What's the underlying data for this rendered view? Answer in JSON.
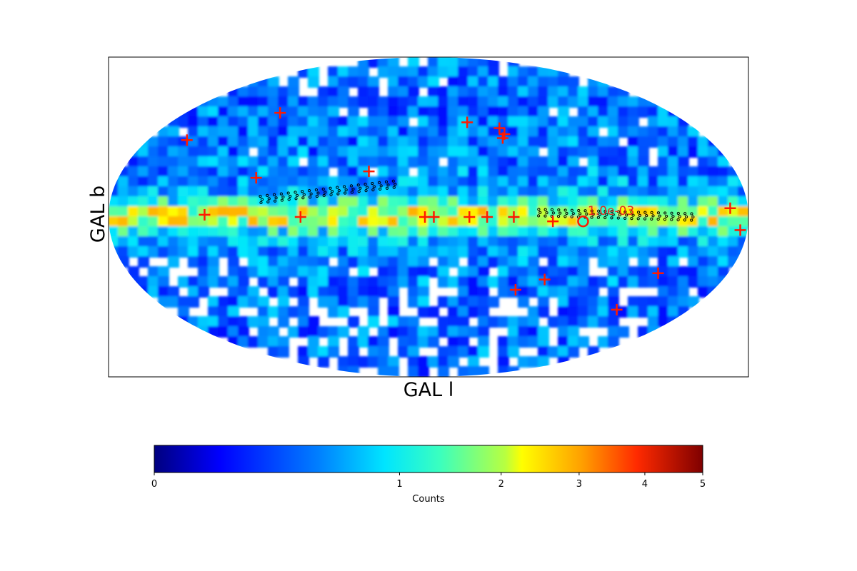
{
  "chart_data": {
    "type": "heatmap",
    "projection": "mollweide",
    "title": "",
    "xlabel": "GAL l",
    "ylabel": "GAL b",
    "colorbar": {
      "label": "Counts",
      "colormap": "jet",
      "scale": "sqrt",
      "range": [
        0,
        5
      ],
      "ticks": [
        "0",
        "1",
        "2",
        "3",
        "4",
        "5"
      ],
      "tick_values": [
        0,
        1,
        2,
        3,
        4,
        5
      ]
    },
    "annotation": {
      "text": "1.0e-03",
      "color": "#e8281e"
    },
    "marker_color": "#ff1a00",
    "circle_color": "#ff1a00",
    "source_markers": [
      {
        "lon": 155,
        "lat": 36
      },
      {
        "lon": 110,
        "lat": 50
      },
      {
        "lon": 100,
        "lat": 18
      },
      {
        "lon": 35,
        "lat": 21
      },
      {
        "lon": -27,
        "lat": 45
      },
      {
        "lon": -48,
        "lat": 42
      },
      {
        "lon": -50,
        "lat": 39
      },
      {
        "lon": -48,
        "lat": 37
      },
      {
        "lon": 126,
        "lat": 1
      },
      {
        "lon": 72,
        "lat": 0
      },
      {
        "lon": 2,
        "lat": 0
      },
      {
        "lon": -3,
        "lat": 0
      },
      {
        "lon": -23,
        "lat": 0
      },
      {
        "lon": -33,
        "lat": 0
      },
      {
        "lon": -48,
        "lat": 0
      },
      {
        "lon": -70,
        "lat": -2
      },
      {
        "lon": -170,
        "lat": 4
      },
      {
        "lon": -176,
        "lat": -6
      },
      {
        "lon": -71,
        "lat": -29
      },
      {
        "lon": -55,
        "lat": -34
      },
      {
        "lon": -138,
        "lat": -26
      },
      {
        "lon": -130,
        "lat": -44
      }
    ],
    "highlight_circle": {
      "lon": -87,
      "lat": -2
    },
    "dot_tracks": [
      {
        "lon_start": 95,
        "lat_start": 8,
        "lon_end": 20,
        "lat_end": 15,
        "rows": 3,
        "count": 60
      },
      {
        "lon_start": -62,
        "lat_start": 2,
        "lon_end": -148,
        "lat_end": 0,
        "rows": 3,
        "count": 70
      }
    ],
    "grid": false
  }
}
